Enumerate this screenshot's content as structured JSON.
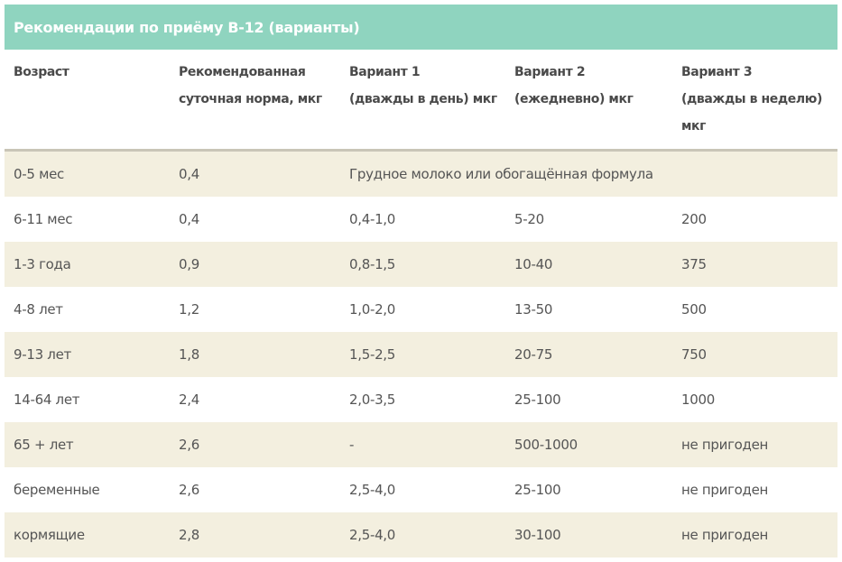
{
  "title": "Рекомендации по приёму B-12 (варианты)",
  "table": {
    "header": [
      [
        "Возраст"
      ],
      [
        "Рекомендованная",
        "суточная норма, мкг"
      ],
      [
        "Вариант 1",
        "(дважды в день) мкг"
      ],
      [
        "Вариант 2",
        "(ежедневно) мкг"
      ],
      [
        "Вариант 3",
        "(дважды в неделю)",
        "мкг"
      ]
    ],
    "rows": [
      [
        "0-5 мес",
        "0,4",
        "Грудное молоко или обогащённая формула"
      ],
      [
        "6-11 мес",
        "0,4",
        "0,4-1,0",
        "5-20",
        "200"
      ],
      [
        "1-3 года",
        "0,9",
        "0,8-1,5",
        "10-40",
        "375"
      ],
      [
        "4-8 лет",
        "1,2",
        "1,0-2,0",
        "13-50",
        "500"
      ],
      [
        "9-13 лет",
        "1,8",
        "1,5-2,5",
        "20-75",
        "750"
      ],
      [
        "14-64 лет",
        "2,4",
        "2,0-3,5",
        "25-100",
        "1000"
      ],
      [
        "65 + лет",
        "2,6",
        "-",
        "500-1000",
        "не пригоден"
      ],
      [
        "беременные",
        "2,6",
        "2,5-4,0",
        "25-100",
        "не пригоден"
      ],
      [
        "кормящие",
        "2,8",
        "2,5-4,0",
        "30-100",
        "не пригоден"
      ]
    ]
  }
}
